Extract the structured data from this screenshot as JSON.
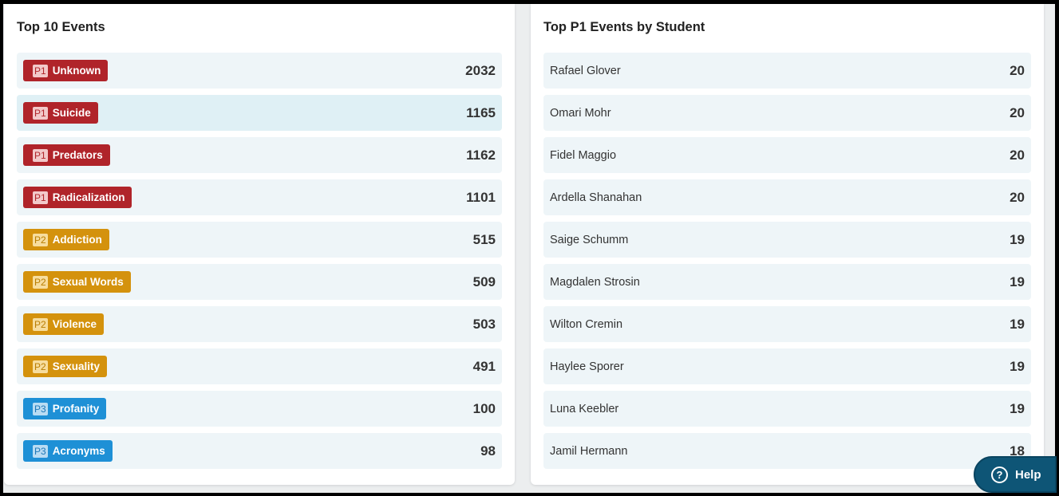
{
  "top_events": {
    "title": "Top 10 Events",
    "items": [
      {
        "priority": "P1",
        "label": "Unknown",
        "count": "2032"
      },
      {
        "priority": "P1",
        "label": "Suicide",
        "count": "1165"
      },
      {
        "priority": "P1",
        "label": "Predators",
        "count": "1162"
      },
      {
        "priority": "P1",
        "label": "Radicalization",
        "count": "1101"
      },
      {
        "priority": "P2",
        "label": "Addiction",
        "count": "515"
      },
      {
        "priority": "P2",
        "label": "Sexual Words",
        "count": "509"
      },
      {
        "priority": "P2",
        "label": "Violence",
        "count": "503"
      },
      {
        "priority": "P2",
        "label": "Sexuality",
        "count": "491"
      },
      {
        "priority": "P3",
        "label": "Profanity",
        "count": "100"
      },
      {
        "priority": "P3",
        "label": "Acronyms",
        "count": "98"
      }
    ]
  },
  "top_students": {
    "title": "Top P1 Events by Student",
    "items": [
      {
        "name": "Rafael Glover",
        "count": "20"
      },
      {
        "name": "Omari Mohr",
        "count": "20"
      },
      {
        "name": "Fidel Maggio",
        "count": "20"
      },
      {
        "name": "Ardella Shanahan",
        "count": "20"
      },
      {
        "name": "Saige Schumm",
        "count": "19"
      },
      {
        "name": "Magdalen Strosin",
        "count": "19"
      },
      {
        "name": "Wilton Cremin",
        "count": "19"
      },
      {
        "name": "Haylee Sporer",
        "count": "19"
      },
      {
        "name": "Luna Keebler",
        "count": "19"
      },
      {
        "name": "Jamil Hermann",
        "count": "18"
      }
    ]
  },
  "help": {
    "label": "Help",
    "icon": "question-circle-icon"
  },
  "colors": {
    "p1": "#b0242a",
    "p2": "#d4920d",
    "p3": "#1e90d6",
    "help_bg": "#0e5576"
  }
}
